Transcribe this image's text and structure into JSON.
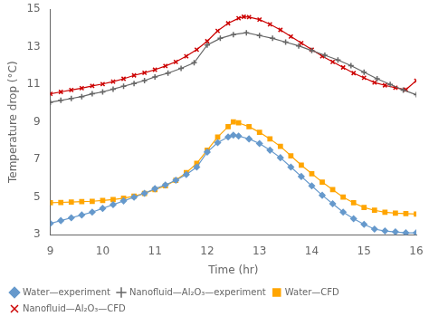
{
  "chart_data": {
    "type": "line",
    "xlabel": "Time (hr)",
    "ylabel": "Temperature drop (°C)",
    "xlim": [
      9,
      16
    ],
    "ylim": [
      3,
      15
    ],
    "xticks": [
      9,
      10,
      11,
      12,
      13,
      14,
      15,
      16
    ],
    "yticks": [
      3,
      5,
      7,
      9,
      11,
      13,
      15
    ],
    "grid": false,
    "legend": "bottom",
    "series": [
      {
        "name": "Water—experiment",
        "color": "#6699cc",
        "marker": "diamond",
        "x": [
          9.0,
          9.2,
          9.4,
          9.6,
          9.8,
          10.0,
          10.2,
          10.4,
          10.6,
          10.8,
          11.0,
          11.2,
          11.4,
          11.6,
          11.8,
          12.0,
          12.2,
          12.4,
          12.5,
          12.6,
          12.8,
          13.0,
          13.2,
          13.4,
          13.6,
          13.8,
          14.0,
          14.2,
          14.4,
          14.6,
          14.8,
          15.0,
          15.2,
          15.4,
          15.6,
          15.8,
          16.0
        ],
        "values": [
          3.6,
          3.75,
          3.9,
          4.05,
          4.2,
          4.4,
          4.6,
          4.8,
          5.0,
          5.2,
          5.45,
          5.65,
          5.9,
          6.2,
          6.6,
          7.4,
          7.9,
          8.2,
          8.3,
          8.25,
          8.1,
          7.85,
          7.5,
          7.1,
          6.6,
          6.1,
          5.6,
          5.1,
          4.65,
          4.2,
          3.85,
          3.55,
          3.3,
          3.2,
          3.15,
          3.1,
          3.1
        ]
      },
      {
        "name": "Nanofluid—Al₂O₃—experiment",
        "color": "#666666",
        "marker": "plus",
        "x": [
          9.0,
          9.2,
          9.4,
          9.6,
          9.8,
          10.0,
          10.2,
          10.4,
          10.6,
          10.8,
          11.0,
          11.25,
          11.5,
          11.75,
          12.0,
          12.25,
          12.5,
          12.75,
          13.0,
          13.25,
          13.5,
          13.75,
          14.0,
          14.25,
          14.5,
          14.75,
          15.0,
          15.25,
          15.5,
          15.75,
          16.0
        ],
        "values": [
          10.05,
          10.15,
          10.25,
          10.35,
          10.5,
          10.6,
          10.75,
          10.9,
          11.05,
          11.2,
          11.4,
          11.6,
          11.85,
          12.15,
          13.1,
          13.45,
          13.65,
          13.75,
          13.6,
          13.45,
          13.25,
          13.05,
          12.8,
          12.55,
          12.3,
          12.0,
          11.65,
          11.3,
          11.0,
          10.7,
          10.45
        ]
      },
      {
        "name": "Water—CFD",
        "color": "#FFA500",
        "marker": "square",
        "x": [
          9.0,
          9.2,
          9.4,
          9.6,
          9.8,
          10.0,
          10.2,
          10.4,
          10.6,
          10.8,
          11.0,
          11.2,
          11.4,
          11.6,
          11.8,
          12.0,
          12.2,
          12.4,
          12.5,
          12.6,
          12.8,
          13.0,
          13.2,
          13.4,
          13.6,
          13.8,
          14.0,
          14.2,
          14.4,
          14.6,
          14.8,
          15.0,
          15.2,
          15.4,
          15.6,
          15.8,
          16.0
        ],
        "values": [
          4.7,
          4.72,
          4.74,
          4.76,
          4.78,
          4.82,
          4.87,
          4.94,
          5.05,
          5.2,
          5.4,
          5.6,
          5.9,
          6.3,
          6.8,
          7.5,
          8.2,
          8.75,
          9.0,
          8.95,
          8.75,
          8.45,
          8.1,
          7.7,
          7.2,
          6.7,
          6.25,
          5.8,
          5.4,
          5.0,
          4.7,
          4.45,
          4.3,
          4.2,
          4.15,
          4.12,
          4.1
        ]
      },
      {
        "name": "Nanofluid—Al₂O₃—CFD",
        "color": "#cc0000",
        "marker": "x",
        "x": [
          9.0,
          9.2,
          9.4,
          9.6,
          9.8,
          10.0,
          10.2,
          10.4,
          10.6,
          10.8,
          11.0,
          11.2,
          11.4,
          11.6,
          11.8,
          12.0,
          12.2,
          12.4,
          12.6,
          12.7,
          12.8,
          13.0,
          13.2,
          13.4,
          13.6,
          13.8,
          14.0,
          14.2,
          14.4,
          14.6,
          14.8,
          15.0,
          15.2,
          15.4,
          15.6,
          15.8,
          16.0
        ],
        "values": [
          10.5,
          10.6,
          10.7,
          10.8,
          10.92,
          11.02,
          11.15,
          11.3,
          11.48,
          11.62,
          11.78,
          11.98,
          12.2,
          12.5,
          12.85,
          13.3,
          13.85,
          14.25,
          14.52,
          14.6,
          14.58,
          14.45,
          14.2,
          13.9,
          13.55,
          13.2,
          12.85,
          12.5,
          12.2,
          11.9,
          11.6,
          11.35,
          11.1,
          10.95,
          10.82,
          10.72,
          11.2
        ]
      }
    ]
  }
}
